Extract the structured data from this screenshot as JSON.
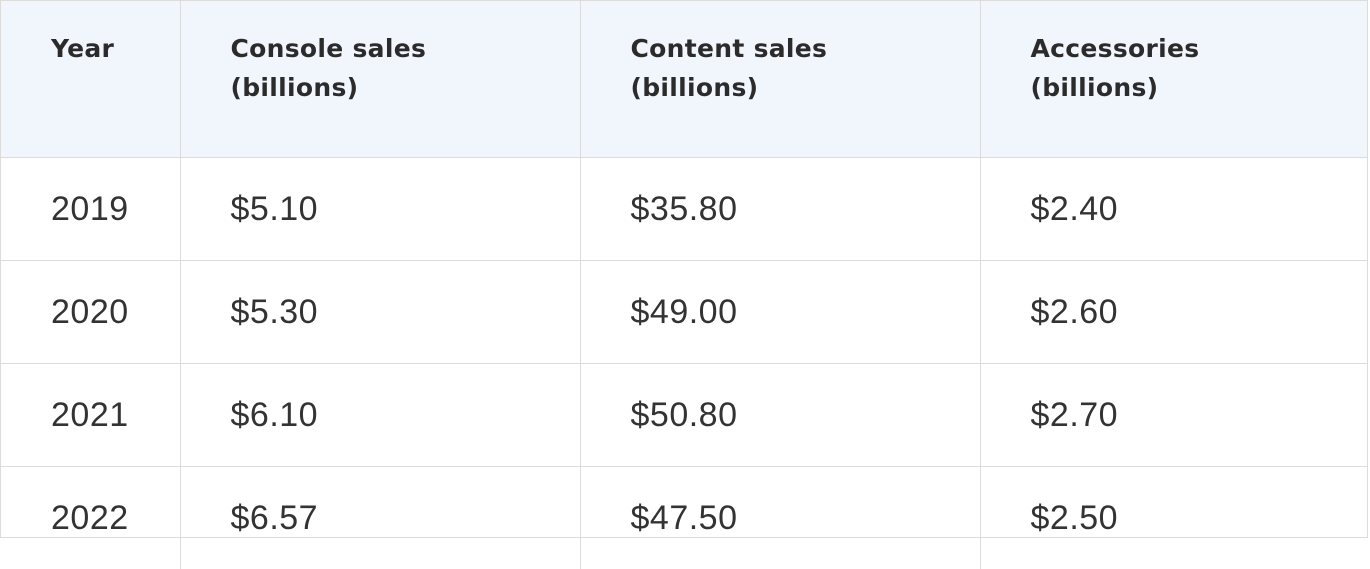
{
  "chart_data": {
    "type": "table",
    "columns": [
      [
        "Year"
      ],
      [
        "Console sales",
        "(billions)"
      ],
      [
        "Content sales",
        "(billions)"
      ],
      [
        "Accessories",
        "(billions)"
      ]
    ],
    "rows": [
      [
        "2019",
        "$5.10",
        "$35.80",
        "$2.40"
      ],
      [
        "2020",
        "$5.30",
        "$49.00",
        "$2.60"
      ],
      [
        "2021",
        "$6.10",
        "$50.80",
        "$2.70"
      ],
      [
        "2022",
        "$6.57",
        "$47.50",
        "$2.50"
      ]
    ],
    "values": {
      "year": [
        2019,
        2020,
        2021,
        2022
      ],
      "console_sales": [
        5.1,
        5.3,
        6.1,
        6.57
      ],
      "content_sales": [
        35.8,
        49.0,
        50.8,
        47.5
      ],
      "accessories": [
        2.4,
        2.6,
        2.7,
        2.5
      ]
    }
  }
}
